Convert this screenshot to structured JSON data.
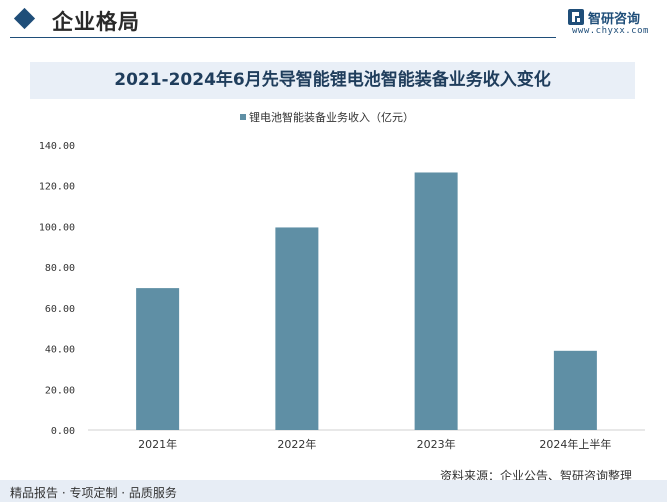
{
  "header": {
    "section_title": "企业格局",
    "logo_name": "智研咨询",
    "logo_url": "www.chyxx.com"
  },
  "colors": {
    "brand": "#1f4e79",
    "bar": "#5f8fa5",
    "banner": "#e9eff7"
  },
  "chart_data": {
    "type": "bar",
    "title": "2021-2024年6月先导智能锂电池智能装备业务收入变化",
    "categories": [
      "2021年",
      "2022年",
      "2023年",
      "2024年上半年"
    ],
    "series": [
      {
        "name": "锂电池智能装备业务收入（亿元）",
        "values": [
          69.7,
          99.5,
          126.5,
          38.9
        ]
      }
    ],
    "ylim": [
      0,
      140
    ],
    "yticks": [
      "0.00",
      "20.00",
      "40.00",
      "60.00",
      "80.00",
      "100.00",
      "120.00",
      "140.00"
    ],
    "grid": false,
    "legend_position": "top-center"
  },
  "footer": {
    "left_text": "精品报告 · 专项定制 · 品质服务",
    "source_text": "资料来源：企业公告、智研咨询整理"
  }
}
